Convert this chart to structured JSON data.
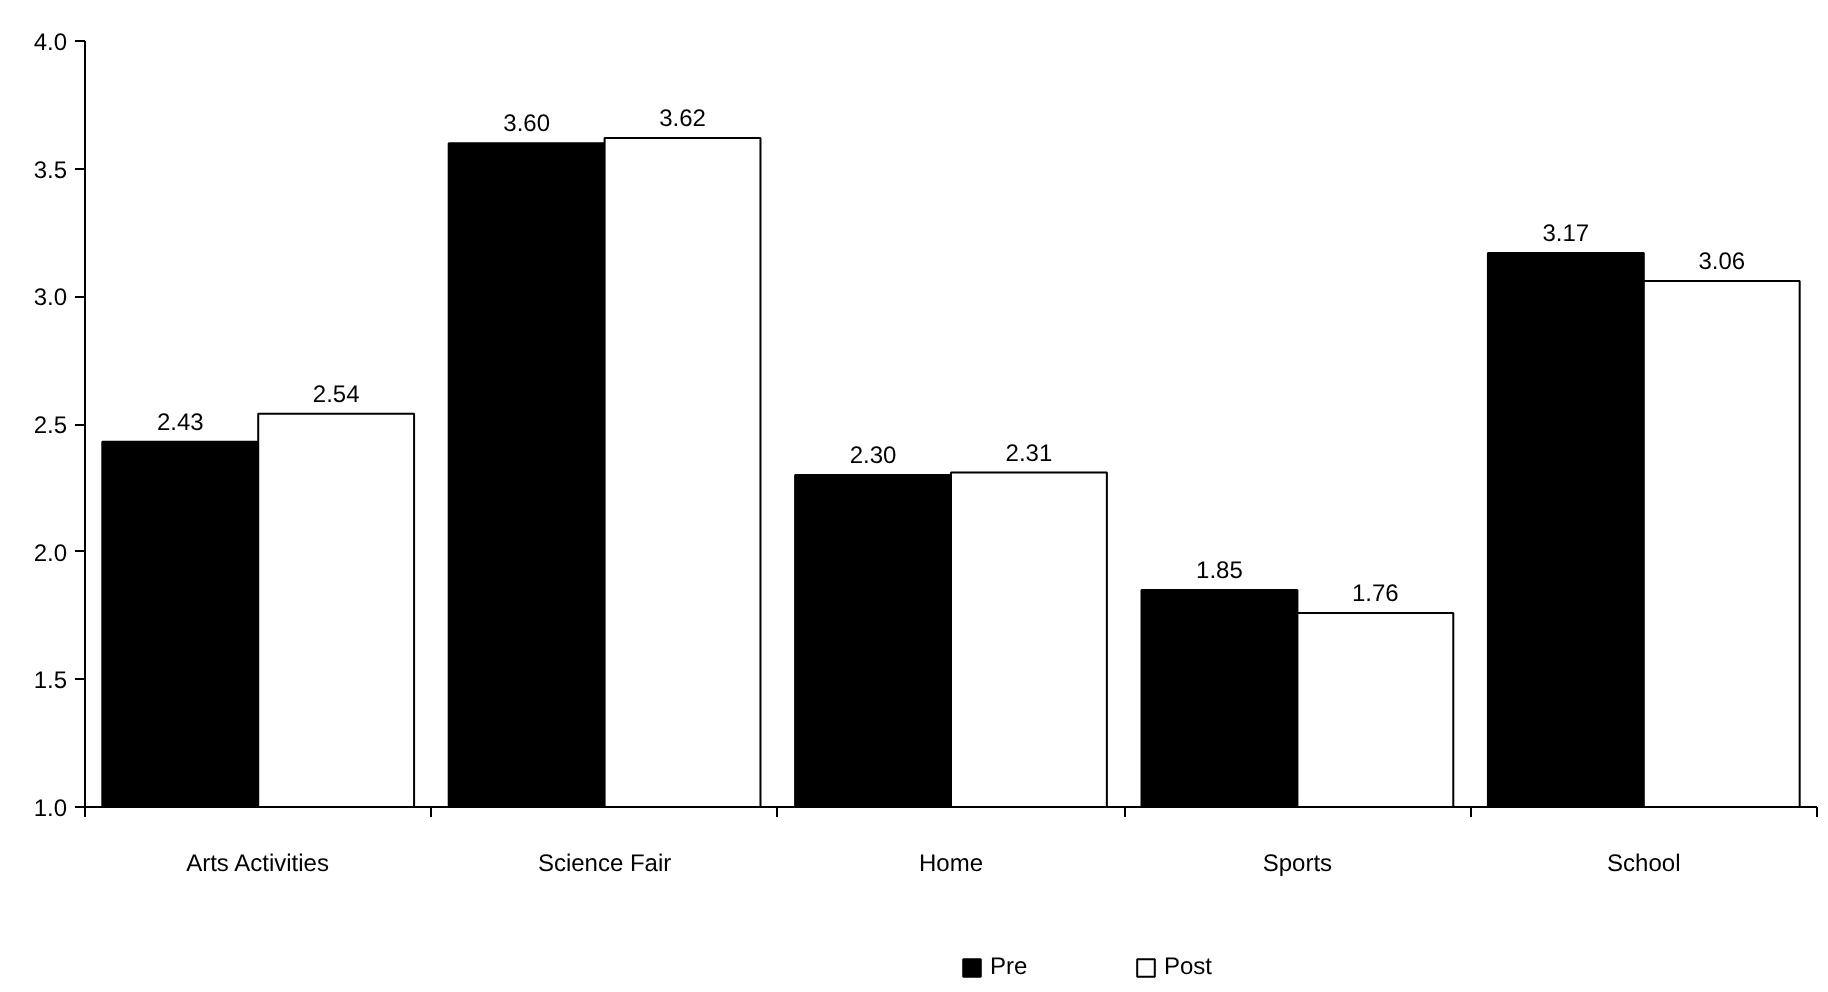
{
  "chart_data": {
    "type": "bar",
    "categories": [
      "Arts Activities",
      "Science Fair",
      "Home",
      "Sports",
      "School"
    ],
    "series": [
      {
        "name": "Pre",
        "color": "#000000",
        "values": [
          2.43,
          3.6,
          2.3,
          1.85,
          3.17
        ],
        "value_labels": [
          "2.43",
          "3.60",
          "2.30",
          "1.85",
          "3.17"
        ]
      },
      {
        "name": "Post",
        "color": "#ffffff",
        "values": [
          2.54,
          3.62,
          2.31,
          1.76,
          3.06
        ],
        "value_labels": [
          "2.54",
          "3.62",
          "2.31",
          "1.76",
          "3.06"
        ]
      }
    ],
    "ylim": [
      1,
      4
    ],
    "yticks": [
      {
        "value": 1,
        "label": "1.0"
      },
      {
        "value": 1.5,
        "label": "1.5"
      },
      {
        "value": 2,
        "label": "2.0"
      },
      {
        "value": 2.5,
        "label": "2.5"
      },
      {
        "value": 3,
        "label": "3.0"
      },
      {
        "value": 3.5,
        "label": "3.5"
      },
      {
        "value": 4,
        "label": "4.0"
      }
    ],
    "legend": "bottom"
  }
}
